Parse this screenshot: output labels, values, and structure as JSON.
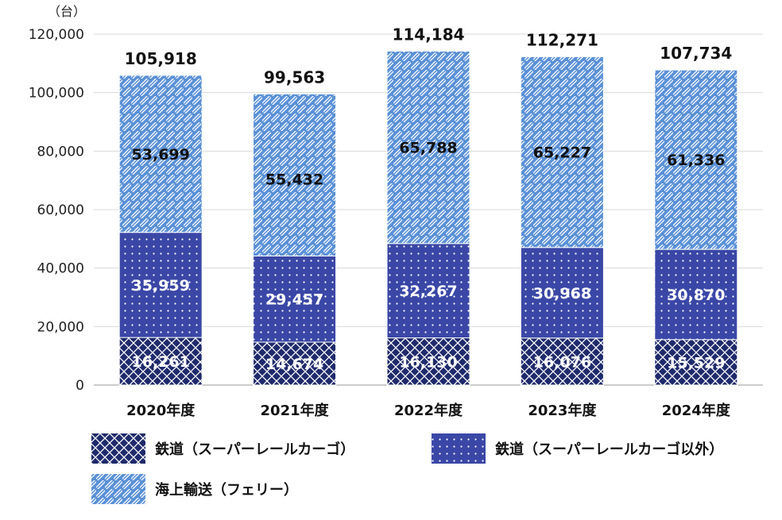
{
  "chart_data": {
    "type": "bar",
    "stacked": true,
    "unit_label": "（台）",
    "categories": [
      "2020年度",
      "2021年度",
      "2022年度",
      "2023年度",
      "2024年度"
    ],
    "series": [
      {
        "name": "鉄道（スーパーレールカーゴ）",
        "values": [
          16261,
          14674,
          16130,
          16076,
          15529
        ],
        "color": "#1f2a6b",
        "pattern": "crosshatch"
      },
      {
        "name": "鉄道（スーパーレールカーゴ以外）",
        "values": [
          35959,
          29457,
          32267,
          30968,
          30870
        ],
        "color": "#3a47a6",
        "pattern": "dots"
      },
      {
        "name": "海上輸送（フェリー）",
        "values": [
          53699,
          55432,
          65788,
          65227,
          61336
        ],
        "color": "#5b91d6",
        "pattern": "diagonal"
      }
    ],
    "totals": [
      105918,
      99563,
      114184,
      112271,
      107734
    ],
    "value_labels": [
      [
        "16,261",
        "14,674",
        "16,130",
        "16,076",
        "15,529"
      ],
      [
        "35,959",
        "29,457",
        "32,267",
        "30,968",
        "30,870"
      ],
      [
        "53,699",
        "55,432",
        "65,788",
        "65,227",
        "61,336"
      ]
    ],
    "total_labels": [
      "105,918",
      "99,563",
      "114,184",
      "112,271",
      "107,734"
    ],
    "ylim": [
      0,
      120000
    ],
    "yticks": [
      0,
      20000,
      40000,
      60000,
      80000,
      100000,
      120000
    ],
    "ytick_labels": [
      "0",
      "20,000",
      "40,000",
      "60,000",
      "80,000",
      "100,000",
      "120,000"
    ],
    "grid": true,
    "legend_position": "bottom"
  }
}
